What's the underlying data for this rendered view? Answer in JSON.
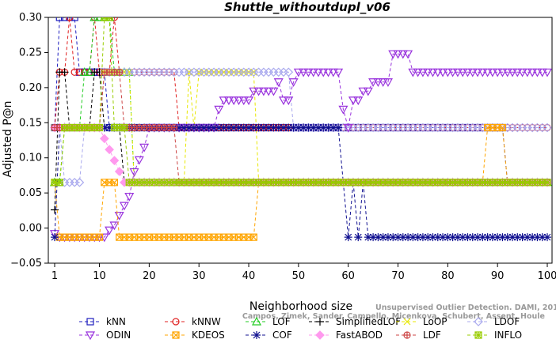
{
  "watermark": {
    "line1": "Unsupervised Outlier Detection. DAMI, 2015.",
    "line2": "Campos, Zimek, Sander, Campello, Micenkova, Schubert, Assent, Houle"
  },
  "chart_data": {
    "type": "line",
    "title": "Shuttle_withoutdupl_v06",
    "xlabel": "Neighborhood size",
    "ylabel": "Adjusted P@n",
    "xlim": [
      1,
      100
    ],
    "ylim": [
      -0.05,
      0.3
    ],
    "xticks": [
      1,
      10,
      20,
      30,
      40,
      50,
      60,
      70,
      80,
      90,
      100
    ],
    "yticks": [
      -0.05,
      0.0,
      0.05,
      0.1,
      0.15,
      0.2,
      0.25,
      0.3
    ],
    "ytick_labels": [
      "−0.05",
      "0.00",
      "0.05",
      "0.10",
      "0.15",
      "0.20",
      "0.25",
      "0.30"
    ],
    "legend_position": "bottom",
    "series": [
      {
        "name": "kNN",
        "color": "#1f1fbf",
        "marker": "square",
        "points": [
          [
            1,
            0.143
          ],
          [
            2,
            0.3
          ],
          [
            3,
            0.3
          ],
          [
            4,
            0.3
          ],
          [
            5,
            0.3
          ],
          [
            6,
            0.222
          ],
          [
            7,
            0.222
          ],
          [
            8,
            0.222
          ],
          [
            9,
            0.222
          ],
          [
            10,
            0.222
          ],
          [
            11,
            0.222
          ],
          [
            12,
            0.143
          ],
          [
            20,
            0.143
          ],
          [
            25,
            0.143
          ],
          [
            30,
            0.143
          ],
          [
            35,
            0.143
          ],
          [
            40,
            0.143
          ],
          [
            50,
            0.143
          ],
          [
            60,
            0.143
          ],
          [
            70,
            0.143
          ],
          [
            80,
            0.143
          ],
          [
            91,
            0.143
          ],
          [
            92,
            0.065
          ],
          [
            100,
            0.065
          ]
        ]
      },
      {
        "name": "kNNW",
        "color": "#e02020",
        "marker": "circle",
        "points": [
          [
            1,
            0.143
          ],
          [
            2,
            0.222
          ],
          [
            3,
            0.222
          ],
          [
            4,
            0.3
          ],
          [
            5,
            0.222
          ],
          [
            8,
            0.222
          ],
          [
            9,
            0.3
          ],
          [
            10,
            0.222
          ],
          [
            11,
            0.222
          ],
          [
            12,
            0.222
          ],
          [
            13,
            0.3
          ],
          [
            14,
            0.222
          ],
          [
            20,
            0.222
          ],
          [
            25,
            0.222
          ],
          [
            26,
            0.143
          ],
          [
            30,
            0.143
          ],
          [
            40,
            0.143
          ],
          [
            50,
            0.143
          ],
          [
            60,
            0.143
          ],
          [
            70,
            0.143
          ],
          [
            80,
            0.143
          ],
          [
            90,
            0.143
          ],
          [
            100,
            0.143
          ]
        ]
      },
      {
        "name": "LOF",
        "color": "#22cc22",
        "marker": "triangle",
        "points": [
          [
            1,
            0.065
          ],
          [
            2,
            0.065
          ],
          [
            3,
            0.143
          ],
          [
            6,
            0.143
          ],
          [
            7,
            0.222
          ],
          [
            8,
            0.222
          ],
          [
            9,
            0.3
          ],
          [
            10,
            0.3
          ],
          [
            11,
            0.3
          ],
          [
            12,
            0.3
          ],
          [
            13,
            0.222
          ],
          [
            16,
            0.222
          ],
          [
            17,
            0.065
          ],
          [
            30,
            0.065
          ],
          [
            40,
            0.065
          ],
          [
            50,
            0.065
          ],
          [
            60,
            0.065
          ],
          [
            70,
            0.065
          ],
          [
            80,
            0.065
          ],
          [
            90,
            0.065
          ],
          [
            100,
            0.065
          ]
        ]
      },
      {
        "name": "SimplifiedLOF",
        "color": "#000000",
        "marker": "plus",
        "points": [
          [
            1,
            0.026
          ],
          [
            2,
            0.222
          ],
          [
            3,
            0.222
          ],
          [
            4,
            0.143
          ],
          [
            7,
            0.143
          ],
          [
            8,
            0.143
          ],
          [
            9,
            0.222
          ],
          [
            10,
            0.222
          ],
          [
            11,
            0.143
          ],
          [
            14,
            0.143
          ],
          [
            15,
            0.065
          ],
          [
            30,
            0.065
          ],
          [
            40,
            0.065
          ],
          [
            50,
            0.065
          ],
          [
            60,
            0.065
          ],
          [
            70,
            0.065
          ],
          [
            80,
            0.065
          ],
          [
            90,
            0.065
          ],
          [
            100,
            0.065
          ]
        ]
      },
      {
        "name": "LoOP",
        "color": "#e8e800",
        "marker": "x",
        "points": [
          [
            1,
            0.143
          ],
          [
            2,
            0.143
          ],
          [
            3,
            0.143
          ],
          [
            10,
            0.143
          ],
          [
            11,
            0.222
          ],
          [
            15,
            0.222
          ],
          [
            16,
            0.222
          ],
          [
            17,
            0.065
          ],
          [
            25,
            0.065
          ],
          [
            26,
            0.065
          ],
          [
            27,
            0.065
          ],
          [
            28,
            0.222
          ],
          [
            29,
            0.143
          ],
          [
            30,
            0.222
          ],
          [
            35,
            0.222
          ],
          [
            40,
            0.222
          ],
          [
            41,
            0.222
          ],
          [
            42,
            0.065
          ],
          [
            50,
            0.065
          ],
          [
            60,
            0.065
          ],
          [
            70,
            0.065
          ],
          [
            80,
            0.065
          ],
          [
            90,
            0.065
          ],
          [
            100,
            0.065
          ]
        ]
      },
      {
        "name": "LDOF",
        "color": "#aaaaee",
        "marker": "diamond",
        "points": [
          [
            1,
            0.143
          ],
          [
            2,
            0.143
          ],
          [
            3,
            0.065
          ],
          [
            4,
            0.065
          ],
          [
            5,
            0.065
          ],
          [
            6,
            0.065
          ],
          [
            7,
            0.143
          ],
          [
            10,
            0.143
          ],
          [
            11,
            0.222
          ],
          [
            20,
            0.222
          ],
          [
            25,
            0.222
          ],
          [
            30,
            0.222
          ],
          [
            40,
            0.222
          ],
          [
            44,
            0.222
          ],
          [
            45,
            0.222
          ],
          [
            46,
            0.222
          ],
          [
            48,
            0.222
          ],
          [
            49,
            0.143
          ],
          [
            60,
            0.143
          ],
          [
            70,
            0.143
          ],
          [
            80,
            0.143
          ],
          [
            90,
            0.143
          ],
          [
            100,
            0.143
          ]
        ]
      },
      {
        "name": "ODIN",
        "color": "#9933dd",
        "marker": "triangle-down",
        "points": [
          [
            1,
            -0.008
          ],
          [
            2,
            -0.013
          ],
          [
            3,
            -0.013
          ],
          [
            5,
            -0.013
          ],
          [
            8,
            -0.013
          ],
          [
            10,
            -0.013
          ],
          [
            11,
            -0.013
          ],
          [
            12,
            -0.003
          ],
          [
            13,
            0.004
          ],
          [
            14,
            0.018
          ],
          [
            15,
            0.032
          ],
          [
            16,
            0.045
          ],
          [
            17,
            0.08
          ],
          [
            18,
            0.097
          ],
          [
            19,
            0.115
          ],
          [
            20,
            0.143
          ],
          [
            25,
            0.143
          ],
          [
            30,
            0.143
          ],
          [
            33,
            0.143
          ],
          [
            34,
            0.169
          ],
          [
            35,
            0.182
          ],
          [
            36,
            0.182
          ],
          [
            37,
            0.182
          ],
          [
            38,
            0.182
          ],
          [
            39,
            0.182
          ],
          [
            40,
            0.182
          ],
          [
            41,
            0.195
          ],
          [
            42,
            0.195
          ],
          [
            43,
            0.195
          ],
          [
            44,
            0.195
          ],
          [
            45,
            0.195
          ],
          [
            46,
            0.208
          ],
          [
            47,
            0.182
          ],
          [
            48,
            0.182
          ],
          [
            49,
            0.208
          ],
          [
            50,
            0.222
          ],
          [
            51,
            0.222
          ],
          [
            52,
            0.222
          ],
          [
            53,
            0.222
          ],
          [
            54,
            0.222
          ],
          [
            55,
            0.222
          ],
          [
            56,
            0.222
          ],
          [
            57,
            0.222
          ],
          [
            58,
            0.222
          ],
          [
            59,
            0.169
          ],
          [
            60,
            0.143
          ],
          [
            61,
            0.182
          ],
          [
            62,
            0.182
          ],
          [
            63,
            0.195
          ],
          [
            64,
            0.195
          ],
          [
            65,
            0.208
          ],
          [
            66,
            0.208
          ],
          [
            67,
            0.208
          ],
          [
            68,
            0.208
          ],
          [
            69,
            0.248
          ],
          [
            70,
            0.248
          ],
          [
            71,
            0.248
          ],
          [
            72,
            0.248
          ],
          [
            73,
            0.222
          ],
          [
            75,
            0.222
          ],
          [
            80,
            0.222
          ],
          [
            90,
            0.222
          ],
          [
            100,
            0.222
          ]
        ]
      },
      {
        "name": "KDEOS",
        "color": "#ffa500",
        "marker": "square-x",
        "points": [
          [
            1,
            0.065
          ],
          [
            2,
            -0.013
          ],
          [
            5,
            -0.013
          ],
          [
            10,
            -0.013
          ],
          [
            11,
            0.065
          ],
          [
            12,
            0.065
          ],
          [
            13,
            0.065
          ],
          [
            14,
            -0.013
          ],
          [
            20,
            -0.013
          ],
          [
            25,
            -0.013
          ],
          [
            30,
            -0.013
          ],
          [
            35,
            -0.013
          ],
          [
            40,
            -0.013
          ],
          [
            41,
            -0.013
          ],
          [
            42,
            0.065
          ],
          [
            50,
            0.065
          ],
          [
            60,
            0.065
          ],
          [
            70,
            0.065
          ],
          [
            80,
            0.065
          ],
          [
            87,
            0.065
          ],
          [
            88,
            0.143
          ],
          [
            90,
            0.143
          ],
          [
            91,
            0.143
          ],
          [
            92,
            0.065
          ],
          [
            100,
            0.065
          ]
        ]
      },
      {
        "name": "COF",
        "color": "#101090",
        "marker": "asterisk",
        "points": [
          [
            1,
            -0.013
          ],
          [
            2,
            0.143
          ],
          [
            10,
            0.143
          ],
          [
            20,
            0.143
          ],
          [
            30,
            0.143
          ],
          [
            40,
            0.143
          ],
          [
            50,
            0.143
          ],
          [
            58,
            0.143
          ],
          [
            59,
            0.065
          ],
          [
            60,
            -0.013
          ],
          [
            61,
            0.065
          ],
          [
            62,
            -0.013
          ],
          [
            63,
            0.065
          ],
          [
            64,
            -0.013
          ],
          [
            70,
            -0.013
          ],
          [
            80,
            -0.013
          ],
          [
            90,
            -0.013
          ],
          [
            100,
            -0.013
          ]
        ]
      },
      {
        "name": "FastABOD",
        "color": "#ff99ee",
        "marker": "diamond-fill",
        "points": [
          [
            1,
            0.143
          ],
          [
            5,
            0.143
          ],
          [
            10,
            0.143
          ],
          [
            15,
            0.065
          ],
          [
            20,
            0.065
          ],
          [
            30,
            0.065
          ],
          [
            40,
            0.065
          ],
          [
            50,
            0.065
          ],
          [
            60,
            0.065
          ],
          [
            70,
            0.065
          ],
          [
            80,
            0.065
          ],
          [
            90,
            0.065
          ],
          [
            100,
            0.065
          ]
        ]
      },
      {
        "name": "LDF",
        "color": "#cc4444",
        "marker": "circle-plus",
        "points": [
          [
            1,
            0.143
          ],
          [
            2,
            0.143
          ],
          [
            3,
            0.143
          ],
          [
            10,
            0.143
          ],
          [
            11,
            0.222
          ],
          [
            12,
            0.222
          ],
          [
            13,
            0.222
          ],
          [
            14,
            0.222
          ],
          [
            15,
            0.143
          ],
          [
            25,
            0.143
          ],
          [
            26,
            0.065
          ],
          [
            30,
            0.065
          ],
          [
            40,
            0.065
          ],
          [
            50,
            0.065
          ],
          [
            60,
            0.065
          ],
          [
            70,
            0.065
          ],
          [
            80,
            0.065
          ],
          [
            90,
            0.065
          ],
          [
            100,
            0.065
          ]
        ]
      },
      {
        "name": "INFLO",
        "color": "#99cc00",
        "marker": "square-asterisk",
        "points": [
          [
            1,
            0.065
          ],
          [
            2,
            0.065
          ],
          [
            3,
            0.143
          ],
          [
            10,
            0.143
          ],
          [
            11,
            0.3
          ],
          [
            12,
            0.3
          ],
          [
            13,
            0.143
          ],
          [
            15,
            0.143
          ],
          [
            16,
            0.065
          ],
          [
            20,
            0.065
          ],
          [
            30,
            0.065
          ],
          [
            40,
            0.065
          ],
          [
            50,
            0.065
          ],
          [
            60,
            0.065
          ],
          [
            70,
            0.065
          ],
          [
            80,
            0.065
          ],
          [
            90,
            0.065
          ],
          [
            100,
            0.065
          ]
        ]
      }
    ]
  }
}
